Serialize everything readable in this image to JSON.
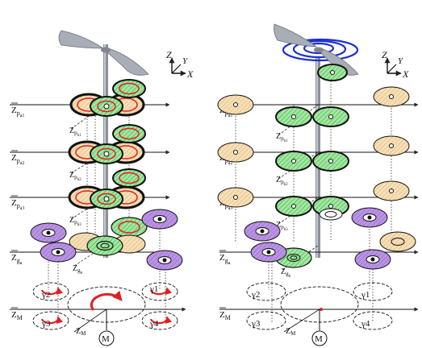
{
  "left": {
    "levels": [
      {
        "label_main": "Z",
        "label_sub": "p",
        "label_sub2": "a1"
      },
      {
        "label_main": "Z",
        "label_sub": "p",
        "label_sub2": "a2"
      },
      {
        "label_main": "Z",
        "label_sub": "p",
        "label_sub2": "a3"
      },
      {
        "label_main": "Z",
        "label_sub": "g",
        "label_sub2": "a"
      },
      {
        "label_main": "Z",
        "label_sub": "M",
        "label_sub2": ""
      }
    ],
    "inner_levels": [
      {
        "main": "Z",
        "sub": "p",
        "sub2": "b1"
      },
      {
        "main": "Z",
        "sub": "p",
        "sub2": "b2"
      },
      {
        "main": "Z",
        "sub": "p",
        "sub2": "b3"
      },
      {
        "main": "Z",
        "sub": "g",
        "sub2": "b"
      }
    ],
    "gammas": [
      "γ2",
      "γ1",
      "γ3",
      "γ4"
    ],
    "zm_diag": "Z",
    "zm_diag_sub": "M",
    "motor": "M"
  },
  "right": {
    "levels": [
      {
        "label_main": "Z",
        "label_sub": "p",
        "label_sub2": "a1"
      },
      {
        "label_main": "Z",
        "label_sub": "p",
        "label_sub2": "a2"
      },
      {
        "label_main": "Z",
        "label_sub": "p",
        "label_sub2": "a3"
      },
      {
        "label_main": "Z",
        "label_sub": "g",
        "label_sub2": "a"
      },
      {
        "label_main": "Z",
        "label_sub": "M",
        "label_sub2": ""
      }
    ],
    "inner_levels": [
      {
        "main": "Z",
        "sub": "p",
        "sub2": "b1"
      },
      {
        "main": "Z",
        "sub": "p",
        "sub2": "b2"
      },
      {
        "main": "Z",
        "sub": "p",
        "sub2": "b3"
      },
      {
        "main": "Z",
        "sub": "g",
        "sub2": "b"
      }
    ],
    "gammas": [
      "γ2",
      "γ1",
      "γ3",
      "γ4"
    ],
    "zm_diag": "Z",
    "zm_diag_sub": "M",
    "motor": "M"
  },
  "axes": {
    "z": "Z",
    "y": "Y",
    "x": "X"
  },
  "colors": {
    "green": "#8fe08f",
    "tan": "#f6d9a8",
    "purple": "#b48be0",
    "red": "#e02020",
    "blue": "#1a2fd6",
    "shaft": "#8a8f99"
  }
}
